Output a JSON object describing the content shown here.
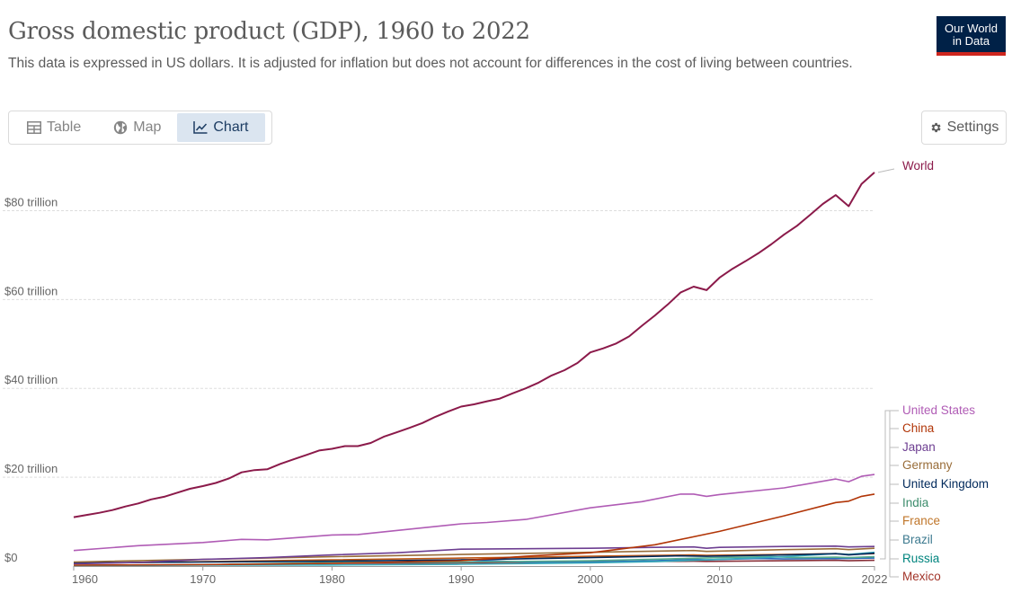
{
  "header": {
    "title": "Gross domestic product (GDP), 1960 to 2022",
    "subtitle": "This data is expressed in US dollars. It is adjusted for inflation but does not account for differences in the cost of living between countries.",
    "logo_line1": "Our World",
    "logo_line2": "in Data",
    "logo_color": "#002147"
  },
  "tabs": [
    {
      "label": "Table",
      "icon": "table-icon",
      "active": false
    },
    {
      "label": "Map",
      "icon": "globe-icon",
      "active": false
    },
    {
      "label": "Chart",
      "icon": "line-chart-icon",
      "active": true
    }
  ],
  "settings": {
    "label": "Settings",
    "icon": "gear-icon"
  },
  "chart_data": {
    "type": "line",
    "title": "Gross domestic product (GDP), 1960 to 2022",
    "xlim": [
      1960,
      2022
    ],
    "ylim": [
      0,
      90000000000000
    ],
    "x_ticks": [
      {
        "v": 1960,
        "label": "1960"
      },
      {
        "v": 1970,
        "label": "1970"
      },
      {
        "v": 1980,
        "label": "1980"
      },
      {
        "v": 1990,
        "label": "1990"
      },
      {
        "v": 2000,
        "label": "2000"
      },
      {
        "v": 2010,
        "label": "2010"
      },
      {
        "v": 2022,
        "label": "2022"
      }
    ],
    "y_ticks": [
      {
        "v": 0,
        "label": "$0"
      },
      {
        "v": 20,
        "label": "$20 trillion"
      },
      {
        "v": 40,
        "label": "$40 trillion"
      },
      {
        "v": 60,
        "label": "$60 trillion"
      },
      {
        "v": 80,
        "label": "$80 trillion"
      }
    ],
    "y_unit": "trillion US dollars",
    "grid": true,
    "legend_placement": "right, line-end labels",
    "series": [
      {
        "name": "World",
        "color": "#8b1a4a",
        "points": [
          [
            1960,
            11.0
          ],
          [
            1961,
            11.5
          ],
          [
            1962,
            12.0
          ],
          [
            1963,
            12.6
          ],
          [
            1964,
            13.4
          ],
          [
            1965,
            14.1
          ],
          [
            1966,
            15.0
          ],
          [
            1967,
            15.6
          ],
          [
            1968,
            16.5
          ],
          [
            1969,
            17.4
          ],
          [
            1970,
            18.0
          ],
          [
            1971,
            18.7
          ],
          [
            1972,
            19.7
          ],
          [
            1973,
            21.1
          ],
          [
            1974,
            21.6
          ],
          [
            1975,
            21.8
          ],
          [
            1976,
            23.0
          ],
          [
            1977,
            24.0
          ],
          [
            1978,
            25.0
          ],
          [
            1979,
            26.0
          ],
          [
            1980,
            26.4
          ],
          [
            1981,
            27.0
          ],
          [
            1982,
            27.0
          ],
          [
            1983,
            27.7
          ],
          [
            1984,
            29.1
          ],
          [
            1985,
            30.1
          ],
          [
            1986,
            31.1
          ],
          [
            1987,
            32.2
          ],
          [
            1988,
            33.6
          ],
          [
            1989,
            34.8
          ],
          [
            1990,
            35.9
          ],
          [
            1991,
            36.4
          ],
          [
            1992,
            37.1
          ],
          [
            1993,
            37.7
          ],
          [
            1994,
            38.9
          ],
          [
            1995,
            40.0
          ],
          [
            1996,
            41.3
          ],
          [
            1997,
            42.9
          ],
          [
            1998,
            44.1
          ],
          [
            1999,
            45.7
          ],
          [
            2000,
            48.1
          ],
          [
            2001,
            49.0
          ],
          [
            2002,
            50.1
          ],
          [
            2003,
            51.7
          ],
          [
            2004,
            54.1
          ],
          [
            2005,
            56.4
          ],
          [
            2006,
            58.9
          ],
          [
            2007,
            61.6
          ],
          [
            2008,
            62.9
          ],
          [
            2009,
            62.1
          ],
          [
            2010,
            64.9
          ],
          [
            2011,
            66.9
          ],
          [
            2012,
            68.6
          ],
          [
            2013,
            70.4
          ],
          [
            2014,
            72.4
          ],
          [
            2015,
            74.6
          ],
          [
            2016,
            76.6
          ],
          [
            2017,
            79.0
          ],
          [
            2018,
            81.5
          ],
          [
            2019,
            83.5
          ],
          [
            2020,
            81.0
          ],
          [
            2021,
            86.0
          ],
          [
            2022,
            88.6
          ]
        ]
      },
      {
        "name": "United States",
        "color": "#b05cb5",
        "points": [
          [
            1960,
            3.5
          ],
          [
            1965,
            4.6
          ],
          [
            1970,
            5.3
          ],
          [
            1973,
            6.0
          ],
          [
            1975,
            5.9
          ],
          [
            1980,
            7.0
          ],
          [
            1982,
            7.1
          ],
          [
            1985,
            8.0
          ],
          [
            1990,
            9.5
          ],
          [
            1992,
            9.8
          ],
          [
            1995,
            10.5
          ],
          [
            2000,
            13.1
          ],
          [
            2004,
            14.5
          ],
          [
            2007,
            16.2
          ],
          [
            2008,
            16.2
          ],
          [
            2009,
            15.7
          ],
          [
            2010,
            16.1
          ],
          [
            2015,
            17.6
          ],
          [
            2019,
            19.6
          ],
          [
            2020,
            19.0
          ],
          [
            2021,
            20.2
          ],
          [
            2022,
            20.6
          ]
        ]
      },
      {
        "name": "China",
        "color": "#b13507",
        "points": [
          [
            1960,
            0.2
          ],
          [
            1970,
            0.3
          ],
          [
            1980,
            0.6
          ],
          [
            1985,
            0.9
          ],
          [
            1990,
            1.2
          ],
          [
            1995,
            2.2
          ],
          [
            2000,
            3.0
          ],
          [
            2005,
            4.8
          ],
          [
            2010,
            7.8
          ],
          [
            2015,
            11.3
          ],
          [
            2019,
            14.3
          ],
          [
            2020,
            14.6
          ],
          [
            2021,
            15.7
          ],
          [
            2022,
            16.2
          ]
        ]
      },
      {
        "name": "Japan",
        "color": "#6d3e91",
        "points": [
          [
            1960,
            0.5
          ],
          [
            1965,
            0.8
          ],
          [
            1970,
            1.5
          ],
          [
            1975,
            1.9
          ],
          [
            1980,
            2.5
          ],
          [
            1985,
            3.0
          ],
          [
            1990,
            3.8
          ],
          [
            1995,
            3.9
          ],
          [
            2000,
            4.0
          ],
          [
            2005,
            4.2
          ],
          [
            2008,
            4.3
          ],
          [
            2009,
            4.0
          ],
          [
            2010,
            4.2
          ],
          [
            2015,
            4.4
          ],
          [
            2019,
            4.5
          ],
          [
            2020,
            4.3
          ],
          [
            2022,
            4.4
          ]
        ]
      },
      {
        "name": "Germany",
        "color": "#996d39",
        "points": [
          [
            1960,
            0.9
          ],
          [
            1970,
            1.5
          ],
          [
            1980,
            2.1
          ],
          [
            1990,
            2.6
          ],
          [
            2000,
            3.1
          ],
          [
            2008,
            3.5
          ],
          [
            2009,
            3.3
          ],
          [
            2015,
            3.7
          ],
          [
            2019,
            3.9
          ],
          [
            2020,
            3.7
          ],
          [
            2022,
            4.0
          ]
        ]
      },
      {
        "name": "United Kingdom",
        "color": "#00295b",
        "points": [
          [
            1960,
            0.7
          ],
          [
            1970,
            0.9
          ],
          [
            1980,
            1.1
          ],
          [
            1990,
            1.4
          ],
          [
            2000,
            1.9
          ],
          [
            2007,
            2.3
          ],
          [
            2009,
            2.2
          ],
          [
            2015,
            2.5
          ],
          [
            2019,
            2.8
          ],
          [
            2020,
            2.5
          ],
          [
            2022,
            2.9
          ]
        ]
      },
      {
        "name": "India",
        "color": "#38aaba",
        "points": [
          [
            1960,
            0.1
          ],
          [
            1970,
            0.2
          ],
          [
            1980,
            0.25
          ],
          [
            1990,
            0.4
          ],
          [
            2000,
            0.7
          ],
          [
            2005,
            1.0
          ],
          [
            2010,
            1.5
          ],
          [
            2015,
            2.1
          ],
          [
            2019,
            2.8
          ],
          [
            2020,
            2.6
          ],
          [
            2022,
            3.1
          ]
        ]
      },
      {
        "name": "France",
        "color": "#c05917",
        "points": [
          [
            1960,
            0.6
          ],
          [
            1970,
            1.0
          ],
          [
            1980,
            1.4
          ],
          [
            1990,
            1.8
          ],
          [
            2000,
            2.2
          ],
          [
            2008,
            2.5
          ],
          [
            2009,
            2.4
          ],
          [
            2015,
            2.6
          ],
          [
            2019,
            2.8
          ],
          [
            2020,
            2.6
          ],
          [
            2022,
            2.8
          ]
        ]
      },
      {
        "name": "Brazil",
        "color": "#58ac8c",
        "points": [
          [
            1960,
            0.15
          ],
          [
            1970,
            0.3
          ],
          [
            1980,
            0.8
          ],
          [
            1990,
            0.9
          ],
          [
            2000,
            1.2
          ],
          [
            2010,
            1.9
          ],
          [
            2014,
            2.1
          ],
          [
            2016,
            1.9
          ],
          [
            2019,
            2.0
          ],
          [
            2020,
            1.9
          ],
          [
            2022,
            2.1
          ]
        ]
      },
      {
        "name": "Russia",
        "color": "#286bbb",
        "points": [
          [
            1990,
            1.4
          ],
          [
            1995,
            0.9
          ],
          [
            1998,
            0.8
          ],
          [
            2000,
            0.9
          ],
          [
            2005,
            1.2
          ],
          [
            2008,
            1.5
          ],
          [
            2009,
            1.4
          ],
          [
            2013,
            1.7
          ],
          [
            2015,
            1.6
          ],
          [
            2020,
            1.7
          ],
          [
            2022,
            1.8
          ]
        ]
      },
      {
        "name": "Mexico",
        "color": "#883039",
        "points": [
          [
            1960,
            0.15
          ],
          [
            1970,
            0.3
          ],
          [
            1980,
            0.6
          ],
          [
            1990,
            0.7
          ],
          [
            2000,
            1.0
          ],
          [
            2008,
            1.1
          ],
          [
            2009,
            1.05
          ],
          [
            2015,
            1.2
          ],
          [
            2019,
            1.3
          ],
          [
            2020,
            1.2
          ],
          [
            2022,
            1.3
          ]
        ]
      }
    ],
    "labels": [
      {
        "name": "World",
        "color": "#8b1a4a"
      },
      {
        "name": "United States",
        "color": "#b05cb5"
      },
      {
        "name": "China",
        "color": "#b13507"
      },
      {
        "name": "Japan",
        "color": "#6d3e91"
      },
      {
        "name": "Germany",
        "color": "#996d39"
      },
      {
        "name": "United Kingdom",
        "color": "#00295b"
      },
      {
        "name": "India",
        "color": "#3c8c6c"
      },
      {
        "name": "France",
        "color": "#c0762a"
      },
      {
        "name": "Brazil",
        "color": "#3d7a8f"
      },
      {
        "name": "Russia",
        "color": "#00847e"
      },
      {
        "name": "Mexico",
        "color": "#a2352a"
      }
    ]
  }
}
